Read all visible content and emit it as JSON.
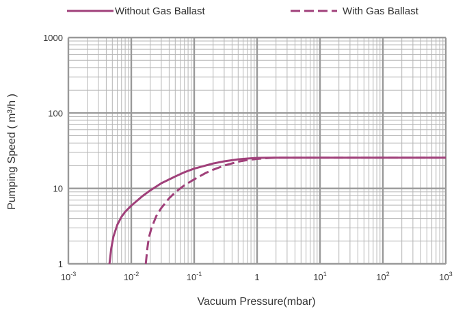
{
  "chart_data": {
    "type": "line",
    "xlabel": "Vacuum Pressure(mbar)",
    "ylabel": "Pumping Speed ( m³/h )",
    "x_scale": "log",
    "y_scale": "log",
    "xlim": [
      0.001,
      1000
    ],
    "ylim": [
      1,
      1000
    ],
    "grid": true,
    "legend_position": "top",
    "x_ticks": [
      {
        "base": "10",
        "exp": "-3"
      },
      {
        "base": "10",
        "exp": "-2"
      },
      {
        "base": "10",
        "exp": "-1"
      },
      {
        "base": "1",
        "exp": ""
      },
      {
        "base": "10",
        "exp": "1"
      },
      {
        "base": "10",
        "exp": "2"
      },
      {
        "base": "10",
        "exp": "3"
      }
    ],
    "y_ticks": [
      "1",
      "10",
      "100",
      "1000"
    ],
    "series": [
      {
        "name": "Without Gas Ballast",
        "style": "solid",
        "color": "#a0407a",
        "x": [
          0.0045,
          0.0048,
          0.0052,
          0.006,
          0.007,
          0.008,
          0.01,
          0.015,
          0.02,
          0.03,
          0.05,
          0.07,
          0.1,
          0.2,
          0.3,
          0.5,
          0.7,
          1,
          2,
          5,
          10,
          100,
          1000
        ],
        "y": [
          1,
          1.6,
          2.3,
          3.3,
          4.2,
          4.9,
          5.9,
          7.9,
          9.4,
          11.7,
          14.4,
          16.4,
          18.3,
          21.4,
          22.9,
          24.3,
          24.9,
          25.4,
          25.6,
          25.6,
          25.6,
          25.6,
          25.6
        ]
      },
      {
        "name": "With Gas Ballast",
        "style": "dashed",
        "color": "#a0407a",
        "x": [
          0.017,
          0.018,
          0.019,
          0.021,
          0.025,
          0.03,
          0.04,
          0.05,
          0.07,
          0.1,
          0.15,
          0.2,
          0.3,
          0.5,
          0.7,
          1,
          1.5,
          2,
          5,
          10,
          100,
          1000
        ],
        "y": [
          1,
          1.6,
          2.2,
          3.0,
          4.3,
          5.5,
          7.4,
          8.9,
          11.0,
          13.2,
          15.9,
          17.7,
          20.1,
          22.6,
          23.8,
          24.6,
          25.3,
          25.6,
          25.6,
          25.6,
          25.6,
          25.6
        ]
      }
    ]
  }
}
